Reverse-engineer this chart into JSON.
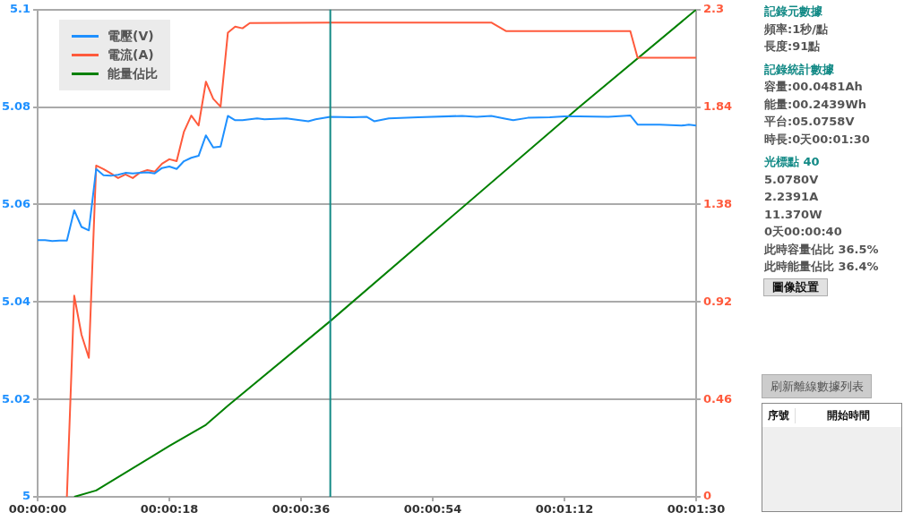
{
  "chart_data": {
    "type": "line",
    "xlim": [
      0,
      90
    ],
    "xticks": [
      {
        "value": 0,
        "label": "00:00:00"
      },
      {
        "value": 18,
        "label": "00:00:18"
      },
      {
        "value": 36,
        "label": "00:00:36"
      },
      {
        "value": 54,
        "label": "00:00:54"
      },
      {
        "value": 72,
        "label": "00:01:12"
      },
      {
        "value": 90,
        "label": "00:01:30"
      }
    ],
    "ylim": [
      5,
      5.1
    ],
    "yticks": [
      5,
      5.02,
      5.04,
      5.06,
      5.08,
      5.1
    ],
    "y2lim": [
      0,
      2.3
    ],
    "y2ticks": [
      0,
      0.46,
      0.92,
      1.38,
      1.84,
      2.3
    ],
    "series": [
      {
        "name": "電壓(V)",
        "color": "#1e90ff",
        "x": [
          0,
          1,
          2,
          3,
          4,
          5,
          6,
          7,
          8,
          9,
          10,
          11,
          12,
          13,
          14,
          15,
          16,
          17,
          18,
          19,
          20,
          21,
          22,
          23,
          24,
          25,
          26,
          27,
          28,
          29,
          30,
          31,
          34,
          37,
          38,
          40,
          43,
          45,
          46,
          48,
          52,
          58,
          60,
          62,
          64,
          65,
          67,
          70,
          72,
          74,
          78,
          81,
          82,
          85,
          88,
          89,
          90
        ],
        "values": [
          5.0527,
          5.0527,
          5.0525,
          5.0526,
          5.0526,
          5.0588,
          5.0554,
          5.0547,
          5.0673,
          5.066,
          5.0659,
          5.0661,
          5.0665,
          5.0664,
          5.0665,
          5.0666,
          5.0664,
          5.0675,
          5.0678,
          5.0673,
          5.0689,
          5.0696,
          5.07,
          5.0742,
          5.0717,
          5.0719,
          5.0782,
          5.0773,
          5.0773,
          5.0775,
          5.0777,
          5.0775,
          5.0777,
          5.0771,
          5.0775,
          5.078,
          5.0779,
          5.078,
          5.0771,
          5.0777,
          5.0779,
          5.0782,
          5.078,
          5.0782,
          5.0776,
          5.0773,
          5.0778,
          5.0779,
          5.0781,
          5.0781,
          5.078,
          5.0783,
          5.0764,
          5.0764,
          5.0762,
          5.0764,
          5.0762
        ]
      },
      {
        "name": "電流(A)",
        "color": "#ff5a3c",
        "axis": "y2",
        "x": [
          4,
          5,
          6,
          7,
          8,
          9,
          10,
          11,
          12,
          13,
          14,
          15,
          16,
          17,
          18,
          19,
          20,
          21,
          22,
          23,
          24,
          25,
          26,
          27,
          28,
          29,
          40,
          62,
          64,
          81,
          82,
          90
        ],
        "values": [
          0,
          0.95,
          0.765,
          0.656,
          1.564,
          1.547,
          1.527,
          1.505,
          1.522,
          1.505,
          1.531,
          1.543,
          1.535,
          1.573,
          1.594,
          1.585,
          1.724,
          1.8,
          1.753,
          1.96,
          1.879,
          1.842,
          2.191,
          2.22,
          2.212,
          2.237,
          2.239,
          2.239,
          2.199,
          2.199,
          2.073,
          2.073
        ]
      },
      {
        "name": "能量佔比",
        "color": "#008000",
        "axis": "y2",
        "x": [
          5,
          8,
          18,
          23,
          26,
          40,
          74,
          90
        ],
        "values": [
          0,
          0.03,
          0.24,
          0.34,
          0.43,
          0.83,
          1.84,
          2.3
        ]
      }
    ],
    "ref_lines": [
      {
        "axis": "x",
        "value": 40,
        "color": "#138a86"
      }
    ],
    "grid": "y",
    "legend": "top left",
    "marker": "none",
    "line_style": "solid",
    "annotations": [
      "記錄元數據",
      "頻率:1秒/點",
      "長度:91點",
      "記錄統計數據",
      "容量:00.0481Ah",
      "能量:00.2439Wh",
      "平台:05.0758V",
      "時長:0天00:01:30",
      "光標點 40",
      "5.0780V",
      "2.2391A",
      "11.370W",
      "0天00:00:40",
      "此時容量佔比 36.5%",
      "此時能量佔比 36.4%",
      "圖像設置",
      "刷新離線數據列表",
      "序號",
      "開始時間"
    ]
  }
}
